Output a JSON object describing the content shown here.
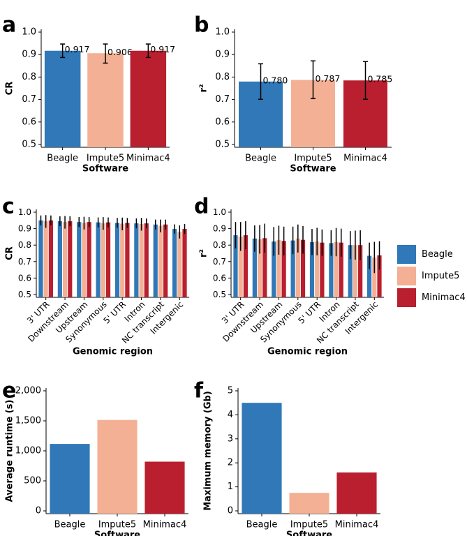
{
  "colors": {
    "Beagle": "#3078b7",
    "Impute5": "#f4b094",
    "Minimac4": "#b91f2e"
  },
  "legend": {
    "items": [
      "Beagle",
      "Impute5",
      "Minimac4"
    ]
  },
  "chart_data": [
    {
      "panel": "a",
      "type": "bar",
      "xlabel": "Software",
      "ylabel": "CR",
      "categories": [
        "Beagle",
        "Impute5",
        "Minimac4"
      ],
      "values": [
        0.917,
        0.906,
        0.917
      ],
      "errors": [
        [
          0.887,
          0.947
        ],
        [
          0.862,
          0.947
        ],
        [
          0.887,
          0.947
        ]
      ],
      "value_labels": [
        "0.917",
        "0.906",
        "0.917"
      ],
      "ylim": [
        0.5,
        1.0
      ],
      "yticks": [
        "0.5",
        "0.6",
        "0.7",
        "0.8",
        "0.9",
        "1.0"
      ]
    },
    {
      "panel": "b",
      "type": "bar",
      "xlabel": "Software",
      "ylabel": "r²",
      "categories": [
        "Beagle",
        "Impute5",
        "Minimac4"
      ],
      "values": [
        0.78,
        0.787,
        0.785
      ],
      "errors": [
        [
          0.701,
          0.859
        ],
        [
          0.704,
          0.872
        ],
        [
          0.701,
          0.869
        ]
      ],
      "value_labels": [
        "0.780",
        "0.787",
        "0.785"
      ],
      "ylim": [
        0.5,
        1.0
      ],
      "yticks": [
        "0.5",
        "0.6",
        "0.7",
        "0.8",
        "0.9",
        "1.0"
      ]
    },
    {
      "panel": "c",
      "type": "bar",
      "xlabel": "Genomic region",
      "ylabel": "CR",
      "categories": [
        "3' UTR",
        "Downstream",
        "Upstream",
        "Synonymous",
        "5' UTR",
        "Intron",
        "NC transcript",
        "Intergenic"
      ],
      "series": [
        {
          "name": "Beagle",
          "values": [
            0.95,
            0.945,
            0.94,
            0.938,
            0.935,
            0.932,
            0.925,
            0.898
          ],
          "errors": [
            [
              0.92,
              0.98
            ],
            [
              0.915,
              0.975
            ],
            [
              0.91,
              0.97
            ],
            [
              0.908,
              0.968
            ],
            [
              0.905,
              0.965
            ],
            [
              0.902,
              0.962
            ],
            [
              0.895,
              0.955
            ],
            [
              0.87,
              0.926
            ]
          ]
        },
        {
          "name": "Impute5",
          "values": [
            0.945,
            0.94,
            0.935,
            0.933,
            0.93,
            0.928,
            0.918,
            0.88
          ],
          "errors": [
            [
              0.905,
              0.982
            ],
            [
              0.9,
              0.977
            ],
            [
              0.895,
              0.972
            ],
            [
              0.893,
              0.97
            ],
            [
              0.89,
              0.967
            ],
            [
              0.888,
              0.965
            ],
            [
              0.878,
              0.955
            ],
            [
              0.84,
              0.92
            ]
          ]
        },
        {
          "name": "Minimac4",
          "values": [
            0.95,
            0.945,
            0.94,
            0.938,
            0.935,
            0.932,
            0.925,
            0.898
          ],
          "errors": [
            [
              0.92,
              0.98
            ],
            [
              0.915,
              0.975
            ],
            [
              0.91,
              0.97
            ],
            [
              0.908,
              0.968
            ],
            [
              0.905,
              0.965
            ],
            [
              0.902,
              0.962
            ],
            [
              0.895,
              0.955
            ],
            [
              0.868,
              0.928
            ]
          ]
        }
      ],
      "ylim": [
        0.5,
        1.0
      ],
      "yticks": [
        "0.5",
        "0.6",
        "0.7",
        "0.8",
        "0.9",
        "1.0"
      ]
    },
    {
      "panel": "d",
      "type": "bar",
      "xlabel": "Genomic region",
      "ylabel": "r²",
      "categories": [
        "3' UTR",
        "Downstream",
        "Upstream",
        "Synonymous",
        "5' UTR",
        "Intron",
        "NC transcript",
        "Intergenic"
      ],
      "series": [
        {
          "name": "Beagle",
          "values": [
            0.86,
            0.84,
            0.822,
            0.828,
            0.818,
            0.812,
            0.8,
            0.735
          ],
          "errors": [
            [
              0.78,
              0.94
            ],
            [
              0.76,
              0.92
            ],
            [
              0.735,
              0.91
            ],
            [
              0.745,
              0.912
            ],
            [
              0.74,
              0.898
            ],
            [
              0.735,
              0.89
            ],
            [
              0.715,
              0.885
            ],
            [
              0.655,
              0.815
            ]
          ]
        },
        {
          "name": "Impute5",
          "values": [
            0.852,
            0.835,
            0.83,
            0.84,
            0.822,
            0.818,
            0.8,
            0.725
          ],
          "errors": [
            [
              0.765,
              0.94
            ],
            [
              0.748,
              0.922
            ],
            [
              0.742,
              0.918
            ],
            [
              0.755,
              0.925
            ],
            [
              0.738,
              0.905
            ],
            [
              0.732,
              0.904
            ],
            [
              0.712,
              0.888
            ],
            [
              0.63,
              0.82
            ]
          ]
        },
        {
          "name": "Minimac4",
          "values": [
            0.86,
            0.842,
            0.825,
            0.832,
            0.815,
            0.815,
            0.8,
            0.738
          ],
          "errors": [
            [
              0.775,
              0.945
            ],
            [
              0.755,
              0.93
            ],
            [
              0.738,
              0.912
            ],
            [
              0.748,
              0.916
            ],
            [
              0.735,
              0.895
            ],
            [
              0.73,
              0.9
            ],
            [
              0.71,
              0.89
            ],
            [
              0.652,
              0.824
            ]
          ]
        }
      ],
      "ylim": [
        0.5,
        1.0
      ],
      "yticks": [
        "0.5",
        "0.6",
        "0.7",
        "0.8",
        "0.9",
        "1.0"
      ]
    },
    {
      "panel": "e",
      "type": "bar",
      "xlabel": "Software",
      "ylabel": "Average runtime (s)",
      "categories": [
        "Beagle",
        "Impute5",
        "Minimac4"
      ],
      "values": [
        1115,
        1515,
        820
      ],
      "ylim": [
        0,
        2000
      ],
      "yticks": [
        "0",
        "500",
        "1,000",
        "1,500",
        "2,000"
      ]
    },
    {
      "panel": "f",
      "type": "bar",
      "xlabel": "Software",
      "ylabel": "Maximum memory (Gb)",
      "categories": [
        "Beagle",
        "Impute5",
        "Minimac4"
      ],
      "values": [
        4.5,
        0.75,
        1.6
      ],
      "ylim": [
        0,
        5
      ],
      "yticks": [
        "0",
        "1",
        "2",
        "3",
        "4",
        "5"
      ]
    }
  ]
}
